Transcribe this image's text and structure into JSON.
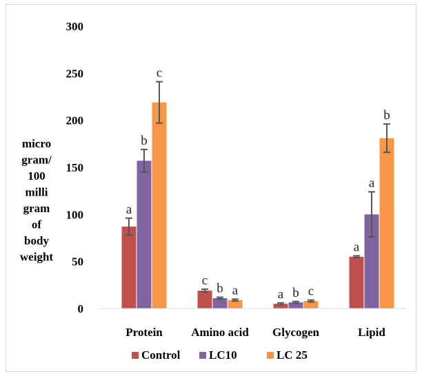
{
  "chart_data": {
    "type": "bar",
    "categories": [
      "Protein",
      "Amino acid",
      "Glycogen",
      "Lipid"
    ],
    "ylabel_lines": [
      "micro",
      "gram/",
      "100",
      "milli",
      "gram",
      "of",
      "body",
      "weight"
    ],
    "ylim": [
      0,
      300
    ],
    "yticks": [
      0,
      50,
      100,
      150,
      200,
      250,
      300
    ],
    "grid": false,
    "legend_position": "bottom",
    "series": [
      {
        "name": "Control",
        "color": "#c0504d",
        "values": [
          87,
          19,
          5,
          55
        ],
        "errors": [
          9,
          1.5,
          1,
          1
        ],
        "significance": [
          "a",
          "c",
          "a",
          "a"
        ]
      },
      {
        "name": "LC10",
        "color": "#8064a2",
        "values": [
          157,
          11,
          6.5,
          100
        ],
        "errors": [
          12,
          1,
          1,
          24
        ],
        "significance": [
          "b",
          "b",
          "b",
          "a"
        ]
      },
      {
        "name": "LC 25",
        "color": "#f79646",
        "values": [
          219,
          9,
          8,
          181
        ],
        "errors": [
          22,
          1,
          1,
          15
        ],
        "significance": [
          "c",
          "a",
          "c",
          "b"
        ]
      }
    ]
  }
}
